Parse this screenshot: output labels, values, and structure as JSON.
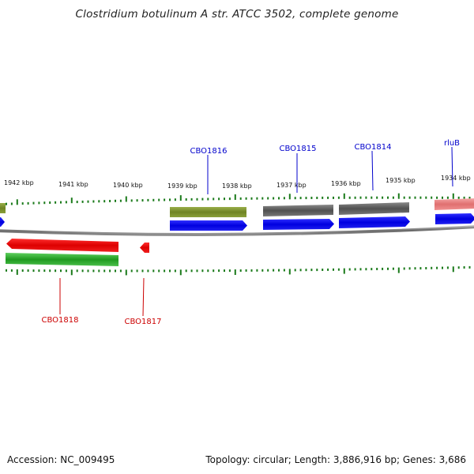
{
  "title": "Clostridium botulinum A str. ATCC 3502, complete genome",
  "footer": {
    "accession": "Accession: NC_009495",
    "summary": "Topology: circular; Length: 3,886,916 bp; Genes: 3,686"
  },
  "kbp_labels": [
    "1942 kbp",
    "1941 kbp",
    "1940 kbp",
    "1939 kbp",
    "1938 kbp",
    "1937 kbp",
    "1936 kbp",
    "1935 kbp",
    "1934 kbp"
  ],
  "genes": [
    {
      "name": "CBO1816",
      "color": "#0000cc"
    },
    {
      "name": "CBO1815",
      "color": "#0000cc"
    },
    {
      "name": "CBO1814",
      "color": "#0000cc"
    },
    {
      "name": "rluB",
      "color": "#0000cc"
    },
    {
      "name": "CBO1818",
      "color": "#cc0000"
    },
    {
      "name": "CBO1817",
      "color": "#cc0000"
    }
  ],
  "colors": {
    "forward_cds": "#0000ee",
    "reverse_cds": "#ee0000",
    "olive_feature": "#7a8f2e",
    "grey_feature": "#606060",
    "pink_feature": "#ee7f7f",
    "green_feature": "#2fae2f",
    "tick": "#1a7a1a",
    "backbone": "#808080"
  }
}
